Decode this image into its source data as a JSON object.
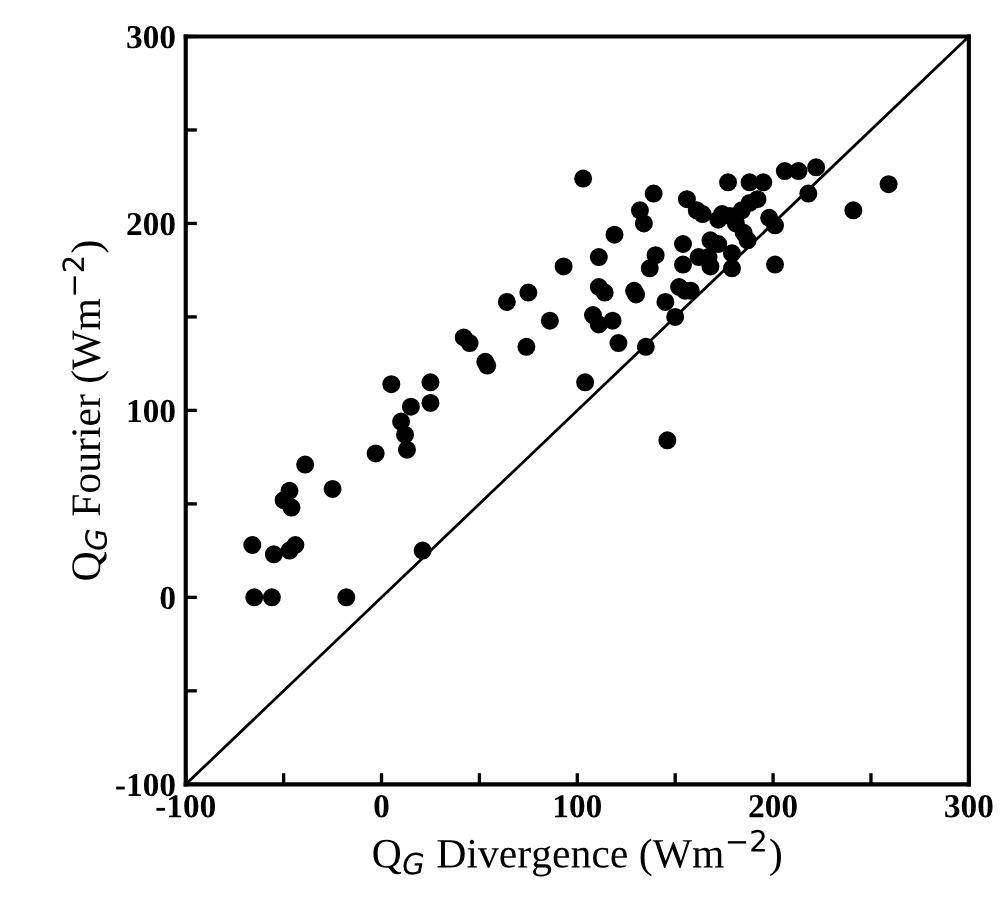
{
  "chart_data": {
    "type": "scatter",
    "xlabel": "Q$_{G}$ Divergence (Wm$^{−2}$)",
    "ylabel": "Q$_{G}$ Fourier (Wm$^{−2}$)",
    "xlim": [
      -100,
      300
    ],
    "ylim": [
      -100,
      300
    ],
    "xticks": [
      -100,
      {
        "value": -50,
        "label": null
      },
      0,
      {
        "value": 50,
        "label": null
      },
      100,
      {
        "value": 150,
        "label": null
      },
      200,
      {
        "value": 250,
        "label": null
      },
      300
    ],
    "yticks": [
      -100,
      {
        "value": -50,
        "label": null
      },
      0,
      {
        "value": 50,
        "label": null
      },
      100,
      {
        "value": 150,
        "label": null
      },
      200,
      {
        "value": 250,
        "label": null
      },
      300
    ],
    "grid": false,
    "legend": false,
    "series": [
      {
        "marker": "circle",
        "color": "#000000",
        "x": [
          -66,
          -65,
          -56,
          -18,
          -55,
          -47,
          -44,
          -50,
          -47,
          -46,
          -39,
          -25,
          -3,
          5,
          10,
          12,
          13,
          15,
          25,
          25,
          21,
          42,
          45,
          53,
          54,
          64,
          75,
          74,
          86,
          93,
          103,
          104,
          108,
          111,
          118,
          111,
          114,
          111,
          119,
          121,
          129,
          130,
          132,
          134,
          135,
          139,
          137,
          140,
          145,
          146,
          150,
          152,
          155,
          158,
          154,
          154,
          156,
          161,
          164,
          162,
          167,
          168,
          172,
          168,
          172,
          174,
          178,
          177,
          179,
          179,
          181,
          184,
          188,
          192,
          185,
          187,
          188,
          195,
          198,
          201,
          201,
          206,
          213,
          222,
          218,
          241,
          259
        ],
        "values": [
          28,
          0,
          0,
          0,
          23,
          25,
          28,
          52,
          57,
          48,
          71,
          58,
          77,
          114,
          94,
          87,
          79,
          102,
          115,
          104,
          25,
          139,
          136,
          126,
          124,
          158,
          163,
          134,
          148,
          177,
          224,
          115,
          151,
          146,
          148,
          166,
          163,
          182,
          194,
          136,
          164,
          162,
          207,
          200,
          134,
          216,
          176,
          183,
          158,
          84,
          150,
          166,
          164,
          164,
          189,
          178,
          213,
          207,
          205,
          182,
          182,
          191,
          189,
          177,
          202,
          205,
          204,
          222,
          184,
          176,
          200,
          207,
          211,
          213,
          195,
          191,
          222,
          222,
          203,
          199,
          178,
          228,
          228,
          230,
          216,
          207,
          221
        ]
      },
      {
        "type": "line",
        "color": "#000000",
        "x": [
          -100,
          300
        ],
        "values": [
          -100,
          300
        ]
      }
    ]
  }
}
